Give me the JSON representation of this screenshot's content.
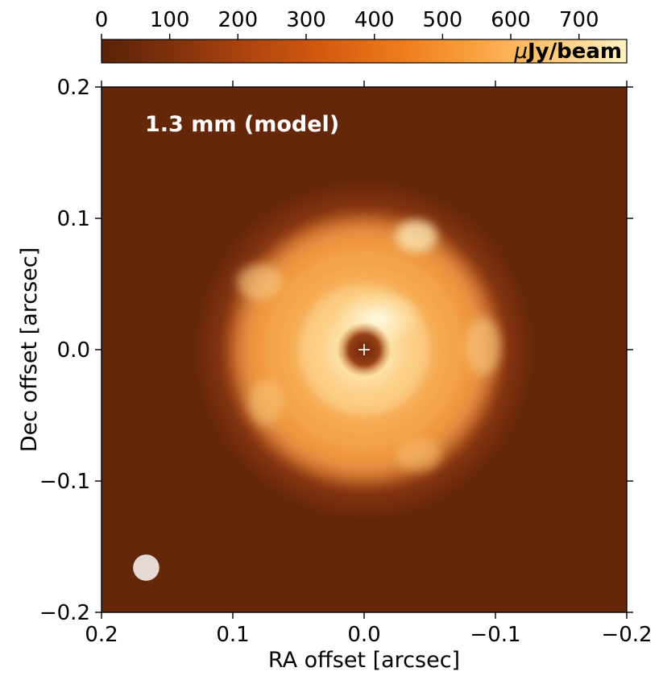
{
  "chart_data": {
    "type": "heatmap",
    "annotation": "1.3 mm (model)",
    "xlabel": "RA offset [arcsec]",
    "ylabel": "Dec offset [arcsec]",
    "xlim": [
      0.2,
      -0.2
    ],
    "ylim": [
      -0.2,
      0.2
    ],
    "x_ticks": [
      0.2,
      0.1,
      0.0,
      -0.1,
      -0.2
    ],
    "x_tick_labels": [
      "0.2",
      "0.1",
      "0.0",
      "−0.1",
      "−0.2"
    ],
    "y_ticks": [
      0.2,
      0.1,
      0.0,
      -0.1,
      -0.2
    ],
    "y_tick_labels": [
      "0.2",
      "0.1",
      "0.0",
      "−0.1",
      "−0.2"
    ],
    "colorbar": {
      "range": [
        0,
        770
      ],
      "ticks": [
        0,
        100,
        200,
        300,
        400,
        500,
        600,
        700
      ],
      "tick_labels": [
        "0",
        "100",
        "200",
        "300",
        "400",
        "500",
        "600",
        "700"
      ],
      "unit_prefix": "μ",
      "unit_rest": "Jy/beam",
      "position": "top",
      "colormap": [
        "#5a2208",
        "#7a300c",
        "#a8420e",
        "#d45a10",
        "#ef7e1c",
        "#f9a442",
        "#fdc97a",
        "#fff2c4"
      ]
    },
    "background_color": "#642709",
    "structure": {
      "inner_cavity_radius_arcsec": 0.012,
      "ring_peak_radius_arcsec": 0.045,
      "outer_ring_radius_arcsec": 0.095,
      "disk_outer_radius_arcsec": 0.125,
      "peak_intensity": 770
    },
    "beam": {
      "center": [
        0.166,
        -0.166
      ],
      "diameter_arcsec": 0.02,
      "color": "#e6d9d3"
    },
    "star_marker": {
      "center": [
        0.0,
        0.0
      ],
      "symbol": "+",
      "color": "#ffffff"
    }
  }
}
